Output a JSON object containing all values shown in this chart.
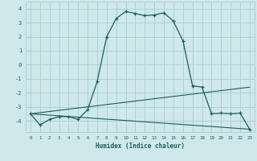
{
  "xlabel": "Humidex (Indice chaleur)",
  "bg_color": "#cfe8ec",
  "grid_color": "#a8cdd4",
  "line_color": "#1a5f5a",
  "xlim": [
    -0.5,
    23.5
  ],
  "ylim": [
    -4.8,
    4.5
  ],
  "xticks": [
    0,
    1,
    2,
    3,
    4,
    5,
    6,
    7,
    8,
    9,
    10,
    11,
    12,
    13,
    14,
    15,
    16,
    17,
    18,
    19,
    20,
    21,
    22,
    23
  ],
  "yticks": [
    -4,
    -3,
    -2,
    -1,
    0,
    1,
    2,
    3,
    4
  ],
  "line1_x": [
    0,
    1,
    2,
    3,
    4,
    5,
    6,
    7,
    8,
    9,
    10,
    11,
    12,
    13,
    14,
    15,
    16,
    17,
    18,
    19,
    20,
    21,
    22,
    23
  ],
  "line1_y": [
    -3.5,
    -4.3,
    -3.9,
    -3.7,
    -3.7,
    -3.9,
    -3.2,
    -1.2,
    2.0,
    3.3,
    3.8,
    3.65,
    3.5,
    3.55,
    3.7,
    3.1,
    1.7,
    -1.5,
    -1.6,
    -3.5,
    -3.45,
    -3.5,
    -3.45,
    -4.6
  ],
  "line2_x": [
    0,
    23
  ],
  "line2_y": [
    -3.5,
    -1.6
  ],
  "line3_x": [
    0,
    23
  ],
  "line3_y": [
    -3.5,
    -4.6
  ]
}
